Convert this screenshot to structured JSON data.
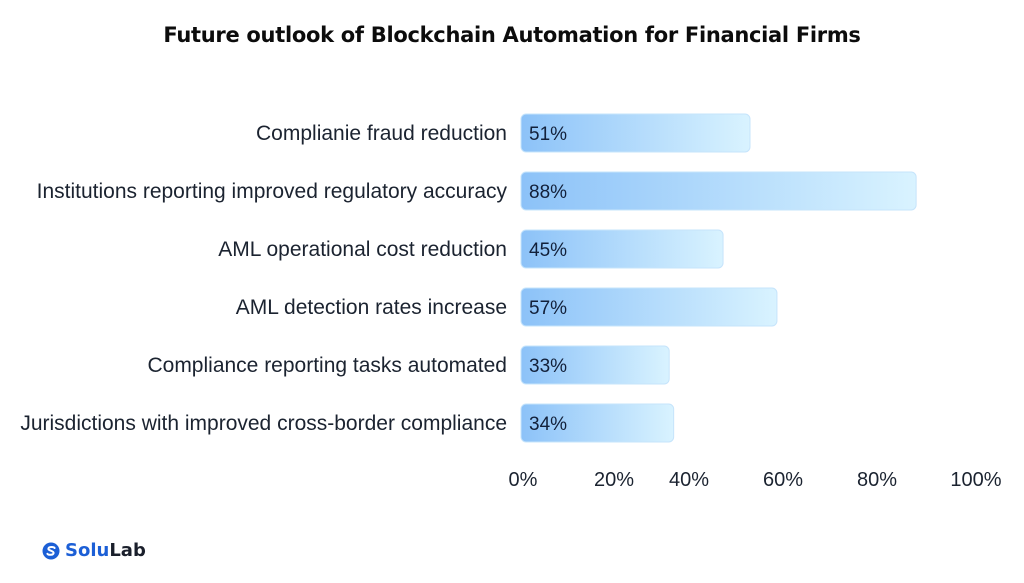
{
  "title": "Future outlook of Blockchain Automation for Financial Firms",
  "brand": {
    "name_part1": "Solu",
    "name_part2": "Lab",
    "icon": "solulab-logo-icon"
  },
  "colors": {
    "bar_start": "#8cc2f8",
    "bar_end": "#d9f3ff",
    "bar_stroke": "#c6e4fb",
    "label_text": "#1b2330",
    "tick_text": "#1b2330",
    "brand_blue": "#1c5fd6"
  },
  "chart_data": {
    "type": "bar",
    "orientation": "horizontal",
    "title": "Future outlook of Blockchain Automation for Financial Firms",
    "xlabel": "",
    "ylabel": "",
    "xlim": [
      0,
      100
    ],
    "x_ticks": [
      "0%",
      "20%",
      "40%",
      "60%",
      "80%",
      "100%"
    ],
    "grid": false,
    "legend": "none",
    "categories": [
      "Complianie fraud reduction",
      "Institutions reporting improved regulatory accuracy",
      "AML operational cost reduction",
      "AML detection rates increase",
      "Compliance reporting tasks automated",
      "Jurisdictions with improved cross-border compliance"
    ],
    "values": [
      51,
      88,
      45,
      57,
      33,
      34
    ],
    "data_labels": [
      "51%",
      "88%",
      "45%",
      "57%",
      "33%",
      "34%"
    ]
  }
}
